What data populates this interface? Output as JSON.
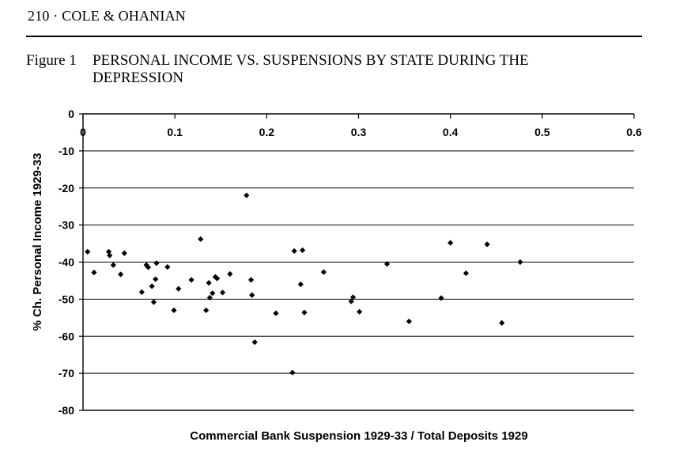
{
  "header": {
    "running_head": "210 · COLE & OHANIAN"
  },
  "figure": {
    "label": "Figure 1",
    "title_line1": "PERSONAL INCOME VS. SUSPENSIONS BY STATE DURING THE",
    "title_line2": "DEPRESSION"
  },
  "chart_data": {
    "type": "scatter",
    "title": "PERSONAL INCOME VS. SUSPENSIONS BY STATE DURING THE DEPRESSION",
    "xlabel": "Commercial Bank Suspension 1929-33 / Total Deposits 1929",
    "ylabel": "% Ch. Personal Income 1929-33",
    "xlim": [
      0,
      0.6
    ],
    "ylim": [
      -80,
      0
    ],
    "xticks": [
      "0",
      "0.1",
      "0.2",
      "0.3",
      "0.4",
      "0.5",
      "0.6"
    ],
    "yticks": [
      "0",
      "-10",
      "-20",
      "-30",
      "-40",
      "-50",
      "-60",
      "-70",
      "-80"
    ],
    "grid": "horizontal",
    "legend": "none",
    "marker_color": "#000000",
    "points": [
      [
        0.005,
        -37.2
      ],
      [
        0.012,
        -42.8
      ],
      [
        0.028,
        -37.2
      ],
      [
        0.029,
        -38.2
      ],
      [
        0.033,
        -40.8
      ],
      [
        0.041,
        -43.3
      ],
      [
        0.045,
        -37.6
      ],
      [
        0.064,
        -48.1
      ],
      [
        0.069,
        -40.8
      ],
      [
        0.071,
        -41.4
      ],
      [
        0.075,
        -46.5
      ],
      [
        0.077,
        -50.8
      ],
      [
        0.079,
        -44.6
      ],
      [
        0.08,
        -40.3
      ],
      [
        0.092,
        -41.3
      ],
      [
        0.099,
        -53.0
      ],
      [
        0.104,
        -47.2
      ],
      [
        0.118,
        -44.8
      ],
      [
        0.128,
        -33.8
      ],
      [
        0.134,
        -53.0
      ],
      [
        0.137,
        -45.6
      ],
      [
        0.138,
        -49.6
      ],
      [
        0.141,
        -48.4
      ],
      [
        0.144,
        -44.0
      ],
      [
        0.146,
        -44.4
      ],
      [
        0.152,
        -48.2
      ],
      [
        0.16,
        -43.2
      ],
      [
        0.178,
        -22.0
      ],
      [
        0.183,
        -44.8
      ],
      [
        0.184,
        -48.9
      ],
      [
        0.187,
        -61.6
      ],
      [
        0.21,
        -53.8
      ],
      [
        0.228,
        -69.8
      ],
      [
        0.23,
        -37.0
      ],
      [
        0.237,
        -46.0
      ],
      [
        0.239,
        -36.8
      ],
      [
        0.241,
        -53.6
      ],
      [
        0.262,
        -42.7
      ],
      [
        0.292,
        -50.6
      ],
      [
        0.294,
        -49.5
      ],
      [
        0.301,
        -53.4
      ],
      [
        0.331,
        -40.5
      ],
      [
        0.355,
        -56.0
      ],
      [
        0.39,
        -49.7
      ],
      [
        0.4,
        -34.8
      ],
      [
        0.417,
        -43.0
      ],
      [
        0.44,
        -35.2
      ],
      [
        0.456,
        -56.4
      ],
      [
        0.476,
        -40.0
      ]
    ]
  }
}
